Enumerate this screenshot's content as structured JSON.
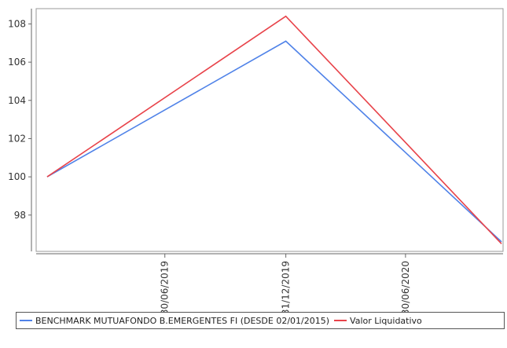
{
  "chart_data": {
    "type": "line",
    "x": [
      "02/01/2019",
      "31/12/2019",
      "23/11/2020"
    ],
    "x_ticks": [
      "30/06/2019",
      "31/12/2019",
      "30/06/2020"
    ],
    "ylim": [
      96.1,
      108.8
    ],
    "y_ticks": [
      98,
      100,
      102,
      104,
      106,
      108
    ],
    "grid": false,
    "legend_position": "bottom",
    "series": [
      {
        "name": "BENCHMARK MUTUAFONDO B.EMERGENTES FI (DESDE 02/01/2015)",
        "color": "#4f82e8",
        "values": [
          100.0,
          107.1,
          96.6
        ]
      },
      {
        "name": "Valor Liquidativo",
        "color": "#e8434a",
        "values": [
          100.0,
          108.4,
          96.5
        ]
      }
    ]
  }
}
